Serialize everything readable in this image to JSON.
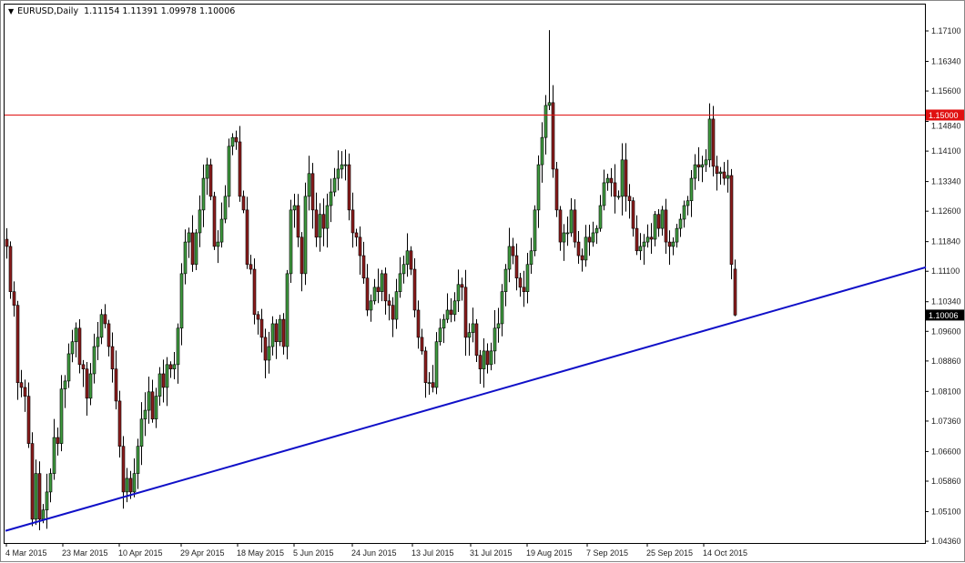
{
  "header": {
    "symbol": "EURUSD,Daily",
    "ohlc": "1.11154 1.11391 1.09978 1.10006"
  },
  "colors": {
    "background": "#ffffff",
    "bull_body": "#3f9b3f",
    "bear_body": "#8c1c1c",
    "wick": "#000000",
    "resistance_line": "#e01010",
    "trendline": "#1010c8",
    "price_tag_resistance": "#e01010",
    "price_tag_current": "#000000"
  },
  "chart_data": {
    "type": "candlestick",
    "title": "EURUSD,Daily",
    "ylim": [
      1.0412,
      1.1782
    ],
    "grid": false,
    "y_ticks": [
      "1.17100",
      "1.16340",
      "1.15600",
      "1.14840",
      "1.14100",
      "1.13340",
      "1.12600",
      "1.11840",
      "1.11100",
      "1.10340",
      "1.09600",
      "1.08860",
      "1.08100",
      "1.07360",
      "1.06600",
      "1.05860",
      "1.05100",
      "1.04360"
    ],
    "x_ticks": [
      {
        "label": "4 Mar 2015",
        "bar": 0
      },
      {
        "label": "23 Mar 2015",
        "bar": 15.5
      },
      {
        "label": "10 Apr 2015",
        "bar": 31
      },
      {
        "label": "29 Apr 2015",
        "bar": 48
      },
      {
        "label": "18 May 2015",
        "bar": 63.5
      },
      {
        "label": "5 Jun 2015",
        "bar": 79
      },
      {
        "label": "24 Jun 2015",
        "bar": 95
      },
      {
        "label": "13 Jul 2015",
        "bar": 111.5
      },
      {
        "label": "31 Jul 2015",
        "bar": 127.5
      },
      {
        "label": "19 Aug 2015",
        "bar": 143
      },
      {
        "label": "7 Sep 2015",
        "bar": 159.5
      },
      {
        "label": "25 Sep 2015",
        "bar": 176
      },
      {
        "label": "14 Oct 2015",
        "bar": 191.5
      }
    ],
    "first_open": 1.119,
    "closes": [
      1.1172,
      1.1059,
      1.1025,
      1.0832,
      1.082,
      1.0798,
      1.068,
      1.0491,
      1.0605,
      1.0491,
      1.0514,
      1.0559,
      1.0605,
      1.0695,
      1.068,
      1.0816,
      1.0836,
      1.0904,
      1.0934,
      1.0968,
      1.0877,
      1.0866,
      1.0793,
      1.0854,
      1.0922,
      1.0945,
      1.1002,
      1.0979,
      1.0922,
      1.0866,
      1.0786,
      1.0673,
      1.0559,
      1.0593,
      1.0559,
      1.0605,
      1.0673,
      1.0741,
      1.0763,
      1.0809,
      1.0741,
      1.0798,
      1.0854,
      1.082,
      1.0877,
      1.0866,
      1.0877,
      1.0968,
      1.1104,
      1.1183,
      1.1206,
      1.1127,
      1.1206,
      1.1263,
      1.1342,
      1.1376,
      1.1297,
      1.1172,
      1.1183,
      1.124,
      1.1297,
      1.1422,
      1.1444,
      1.1433,
      1.1297,
      1.1263,
      1.1127,
      1.1115,
      1.1002,
      1.099,
      1.0945,
      1.0888,
      1.0922,
      1.0979,
      1.0934,
      1.099,
      1.0922,
      1.1104,
      1.1263,
      1.1274,
      1.1195,
      1.1104,
      1.1297,
      1.1354,
      1.1263,
      1.1195,
      1.1252,
      1.1217,
      1.1274,
      1.1308,
      1.1342,
      1.1365,
      1.1376,
      1.1376,
      1.1263,
      1.1206,
      1.1195,
      1.1149,
      1.1093,
      1.1013,
      1.1036,
      1.107,
      1.1059,
      1.1104,
      1.1036,
      1.1025,
      1.099,
      1.1059,
      1.1104,
      1.1127,
      1.1161,
      1.1115,
      1.1013,
      1.0945,
      1.0911,
      1.0832,
      1.0832,
      1.082,
      1.0934,
      1.0968,
      1.099,
      1.1013,
      1.1002,
      1.1036,
      1.1077,
      1.107,
      1.0945,
      1.0957,
      1.0979,
      1.09,
      1.0866,
      1.0911,
      1.0877,
      1.0911,
      1.0968,
      1.0979,
      1.1059,
      1.1115,
      1.1172,
      1.1149,
      1.1093,
      1.107,
      1.1059,
      1.1127,
      1.1161,
      1.1263,
      1.1376,
      1.1444,
      1.1524,
      1.1531,
      1.1365,
      1.1263,
      1.1183,
      1.1206,
      1.1206,
      1.1263,
      1.1183,
      1.1149,
      1.1138,
      1.1195,
      1.1183,
      1.1206,
      1.1217,
      1.1274,
      1.1331,
      1.1342,
      1.1331,
      1.1297,
      1.1297,
      1.1388,
      1.1297,
      1.1286,
      1.1217,
      1.1161,
      1.1172,
      1.1183,
      1.1195,
      1.119,
      1.1252,
      1.1217,
      1.1263,
      1.1183,
      1.1172,
      1.1183,
      1.1217,
      1.124,
      1.1274,
      1.1286,
      1.1342,
      1.1376,
      1.137,
      1.1376,
      1.1388,
      1.149,
      1.1372,
      1.1354,
      1.1358,
      1.1342,
      1.1349,
      1.1127,
      1.10006
    ],
    "last_bar": {
      "open": 1.11154,
      "high": 1.11391,
      "low": 1.09978,
      "close": 1.10006
    },
    "notable_high": {
      "bar": 149,
      "high": 1.1712
    },
    "horizontal_line": {
      "price": 1.15,
      "label": "1.15000"
    },
    "current_price": {
      "price": 1.10006,
      "label": "1.10006"
    },
    "trendline": {
      "from": {
        "bar": 0,
        "price": 1.0462
      },
      "to": {
        "bar": 252.5,
        "price": 1.112
      }
    }
  }
}
